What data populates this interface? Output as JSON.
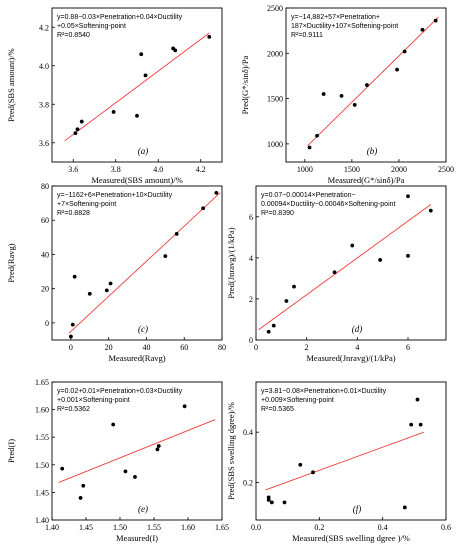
{
  "chart_data": [
    {
      "id": "a",
      "type": "scatter",
      "panel_label": "(a)",
      "xlabel": "Measured(SBS amount)/%",
      "ylabel": "Pred(SBS amount)/%",
      "xlim": [
        3.5,
        4.3
      ],
      "ylim": [
        3.5,
        4.3
      ],
      "xticks": [
        3.6,
        3.8,
        4.0,
        4.2
      ],
      "yticks": [
        3.6,
        3.8,
        4.0,
        4.2
      ],
      "xtick_labels": [
        "3.6",
        "3.8",
        "4.0",
        "4.2"
      ],
      "ytick_labels": [
        "3.6",
        "3.8",
        "4.0",
        "4.2"
      ],
      "equation": [
        "y=0.88−0.03×Penetration+0.04×Ductility",
        "+0.05×Softening-point",
        "R²=0.8540"
      ],
      "points": [
        [
          3.61,
          3.65
        ],
        [
          3.62,
          3.67
        ],
        [
          3.64,
          3.71
        ],
        [
          3.79,
          3.76
        ],
        [
          3.9,
          3.74
        ],
        [
          3.92,
          4.06
        ],
        [
          3.94,
          3.95
        ],
        [
          4.07,
          4.09
        ],
        [
          4.08,
          4.08
        ],
        [
          4.24,
          4.15
        ]
      ],
      "fit": [
        [
          3.56,
          3.61
        ],
        [
          4.24,
          4.17
        ]
      ]
    },
    {
      "id": "b",
      "type": "scatter",
      "panel_label": "(b)",
      "xlabel": "Measured(G*/sinδ)/Pa",
      "ylabel": "Pred(G*/sinδ)/Pa",
      "xlim": [
        800,
        2500
      ],
      "ylim": [
        800,
        2500
      ],
      "xticks": [
        1000,
        1500,
        2000,
        2500
      ],
      "yticks": [
        1000,
        1500,
        2000,
        2500
      ],
      "xtick_labels": [
        "1000",
        "1500",
        "2000",
        "2500"
      ],
      "ytick_labels": [
        "1000",
        "1500",
        "2000",
        "2500"
      ],
      "equation": [
        "y=−14,882+57×Penetration+",
        "187×Ductility+107×Softening-point",
        "R²=0.9111"
      ],
      "points": [
        [
          1050,
          960
        ],
        [
          1130,
          1090
        ],
        [
          1200,
          1550
        ],
        [
          1390,
          1530
        ],
        [
          1530,
          1430
        ],
        [
          1660,
          1650
        ],
        [
          1980,
          1820
        ],
        [
          2060,
          2020
        ],
        [
          2250,
          2260
        ],
        [
          2390,
          2360
        ]
      ],
      "fit": [
        [
          1030,
          980
        ],
        [
          2420,
          2400
        ]
      ]
    },
    {
      "id": "c",
      "type": "scatter",
      "panel_label": "(c)",
      "xlabel": "Measured(Ravg)",
      "ylabel": "Pred(Ravg)",
      "xlim": [
        -10,
        80
      ],
      "ylim": [
        -10,
        80
      ],
      "xticks": [
        0,
        20,
        40,
        60,
        80
      ],
      "yticks": [
        0,
        20,
        40,
        60,
        80
      ],
      "xtick_labels": [
        "0",
        "20",
        "40",
        "60",
        "80"
      ],
      "ytick_labels": [
        "0",
        "20",
        "40",
        "60",
        "80"
      ],
      "equation": [
        "y=−1162+6×Penetration+10×Ductility",
        "+7×Softening-point",
        "R²=0.8828"
      ],
      "points": [
        [
          0,
          -8
        ],
        [
          1,
          -1
        ],
        [
          2,
          27
        ],
        [
          10,
          17
        ],
        [
          19,
          19
        ],
        [
          21,
          23
        ],
        [
          50,
          39
        ],
        [
          56,
          52
        ],
        [
          70,
          67
        ],
        [
          77,
          76
        ]
      ],
      "fit": [
        [
          -1,
          -6
        ],
        [
          79,
          76
        ]
      ]
    },
    {
      "id": "d",
      "type": "scatter",
      "panel_label": "(d)",
      "xlabel": "Measured(Jnravg)/(1/kPa)",
      "ylabel": "Pred(Jnravg)/(1/kPa)",
      "xlim": [
        0,
        7.5
      ],
      "ylim": [
        0,
        7.5
      ],
      "xticks": [
        0,
        2,
        4,
        6
      ],
      "yticks": [
        0,
        2,
        4,
        6
      ],
      "xtick_labels": [
        "0",
        "2",
        "4",
        "6"
      ],
      "ytick_labels": [
        "0",
        "2",
        "4",
        "6"
      ],
      "equation": [
        "y=0.07−0.00014×Penetration−",
        "0.00094×Ductility−0.00046×Softening-point",
        "R²=0.8390"
      ],
      "points": [
        [
          0.5,
          0.4
        ],
        [
          0.7,
          0.7
        ],
        [
          1.2,
          1.9
        ],
        [
          1.5,
          2.6
        ],
        [
          3.1,
          3.3
        ],
        [
          3.8,
          4.6
        ],
        [
          4.9,
          3.9
        ],
        [
          6.0,
          7.0
        ],
        [
          6.0,
          4.1
        ],
        [
          6.9,
          6.3
        ]
      ],
      "fit": [
        [
          0.1,
          0.5
        ],
        [
          6.9,
          6.6
        ]
      ]
    },
    {
      "id": "e",
      "type": "scatter",
      "panel_label": "(e)",
      "xlabel": "Measured(I)",
      "ylabel": "Pred(I)",
      "xlim": [
        1.4,
        1.65
      ],
      "ylim": [
        1.4,
        1.65
      ],
      "xticks": [
        1.4,
        1.45,
        1.5,
        1.55,
        1.6,
        1.65
      ],
      "yticks": [
        1.4,
        1.45,
        1.5,
        1.55,
        1.6,
        1.65
      ],
      "xtick_labels": [
        "1.40",
        "1.45",
        "1.50",
        "1.55",
        "1.60",
        "1.65"
      ],
      "ytick_labels": [
        "1.40",
        "1.45",
        "1.50",
        "1.55",
        "1.60",
        "1.65"
      ],
      "equation": [
        "y=0.02+0.01×Penetration+0.03×Ductility",
        "+0.001×Softening-point",
        "R²=0.5362"
      ],
      "points": [
        [
          1.415,
          1.493
        ],
        [
          1.442,
          1.44
        ],
        [
          1.446,
          1.462
        ],
        [
          1.49,
          1.573
        ],
        [
          1.508,
          1.488
        ],
        [
          1.522,
          1.478
        ],
        [
          1.555,
          1.528
        ],
        [
          1.557,
          1.534
        ],
        [
          1.595,
          1.606
        ]
      ],
      "fit": [
        [
          1.41,
          1.468
        ],
        [
          1.64,
          1.582
        ]
      ]
    },
    {
      "id": "f",
      "type": "scatter",
      "panel_label": "(f)",
      "xlabel": "Measured(SBS swelling dgree )/%",
      "ylabel": "Pred(SBS swelling dgree)/%",
      "xlim": [
        0,
        0.6
      ],
      "ylim": [
        0.05,
        0.6
      ],
      "xticks": [
        0.0,
        0.2,
        0.4,
        0.6
      ],
      "yticks": [
        0.2,
        0.4
      ],
      "xtick_labels": [
        "0.0",
        "0.2",
        "0.4",
        "0.6"
      ],
      "ytick_labels": [
        "0.2",
        "0.4"
      ],
      "equation": [
        "y=3.81−0.08×Penetration+0.01×Ductility",
        "+0.009×Softening-point",
        "R²=0.5365"
      ],
      "points": [
        [
          0.04,
          0.14
        ],
        [
          0.04,
          0.13
        ],
        [
          0.05,
          0.12
        ],
        [
          0.09,
          0.12
        ],
        [
          0.14,
          0.27
        ],
        [
          0.18,
          0.24
        ],
        [
          0.47,
          0.1
        ],
        [
          0.49,
          0.43
        ],
        [
          0.51,
          0.53
        ],
        [
          0.52,
          0.43
        ]
      ],
      "fit": [
        [
          0.03,
          0.17
        ],
        [
          0.53,
          0.4
        ]
      ]
    }
  ]
}
